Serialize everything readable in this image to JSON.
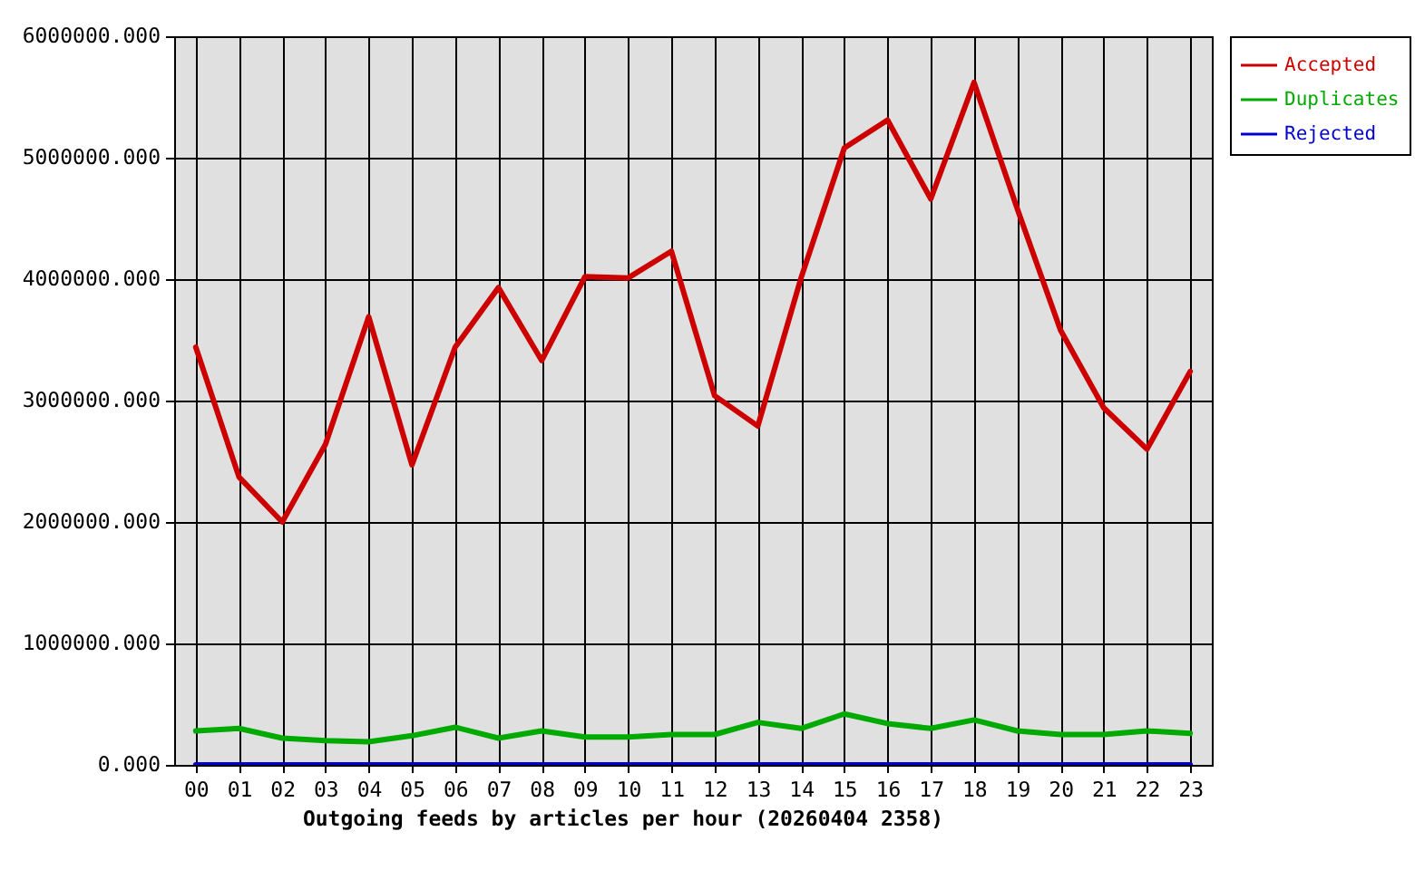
{
  "chart_data": {
    "type": "line",
    "xlabel": "Outgoing feeds by articles per hour (20260404 2358)",
    "categories": [
      "00",
      "01",
      "02",
      "03",
      "04",
      "05",
      "06",
      "07",
      "08",
      "09",
      "10",
      "11",
      "12",
      "13",
      "14",
      "15",
      "16",
      "17",
      "18",
      "19",
      "20",
      "21",
      "22",
      "23"
    ],
    "series": [
      {
        "name": "Accepted",
        "color": "#cc0000",
        "values": [
          3440000,
          2370000,
          2000000,
          2640000,
          3690000,
          2470000,
          3440000,
          3930000,
          3330000,
          4020000,
          4010000,
          4230000,
          3040000,
          2790000,
          4010000,
          5080000,
          5310000,
          4660000,
          5620000,
          4580000,
          3580000,
          2940000,
          2600000,
          3240000
        ]
      },
      {
        "name": "Duplicates",
        "color": "#00aa00",
        "values": [
          280000,
          300000,
          220000,
          200000,
          190000,
          240000,
          310000,
          220000,
          280000,
          230000,
          230000,
          250000,
          250000,
          350000,
          300000,
          420000,
          340000,
          300000,
          370000,
          280000,
          250000,
          250000,
          280000,
          260000
        ]
      },
      {
        "name": "Rejected",
        "color": "#0000cc",
        "values": [
          0,
          0,
          0,
          0,
          0,
          0,
          0,
          0,
          0,
          0,
          0,
          0,
          0,
          0,
          0,
          0,
          0,
          0,
          0,
          0,
          0,
          0,
          0,
          0
        ]
      }
    ],
    "ylim": [
      0,
      6000000
    ],
    "yticks": [
      {
        "value": 0,
        "label": "0.000"
      },
      {
        "value": 1000000,
        "label": "1000000.000"
      },
      {
        "value": 2000000,
        "label": "2000000.000"
      },
      {
        "value": 3000000,
        "label": "3000000.000"
      },
      {
        "value": 4000000,
        "label": "4000000.000"
      },
      {
        "value": 5000000,
        "label": "5000000.000"
      },
      {
        "value": 6000000,
        "label": "6000000.000"
      }
    ],
    "grid": true,
    "legend": "top right"
  }
}
